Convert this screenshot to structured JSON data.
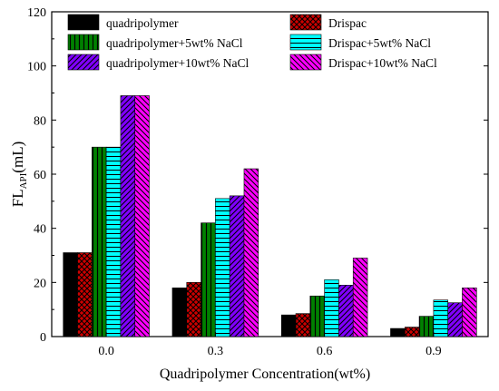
{
  "chart_data": {
    "type": "bar",
    "xlabel": "Quadripolymer Concentration(wt%)",
    "ylabel_main": "FL",
    "ylabel_sub": "API",
    "ylabel_unit": "(mL)",
    "categories": [
      "0.0",
      "0.3",
      "0.6",
      "0.9"
    ],
    "ylim": [
      0,
      120
    ],
    "yticks": [
      "0",
      "20",
      "40",
      "60",
      "80",
      "100",
      "120"
    ],
    "grid": false,
    "legend_position": "top",
    "series": [
      {
        "name": "quadripolymer",
        "values": [
          31,
          18,
          8,
          3
        ],
        "color": "#000000",
        "pattern": "solid"
      },
      {
        "name": "Drispac",
        "values": [
          31,
          20,
          8.5,
          3.5
        ],
        "color": "#cc0000",
        "pattern": "crosshatch"
      },
      {
        "name": "quadripolymer+5wt% NaCl",
        "values": [
          70,
          42,
          15,
          7.5
        ],
        "color": "#008000",
        "pattern": "vertical"
      },
      {
        "name": "Drispac+5wt% NaCl",
        "values": [
          70,
          51,
          21,
          13.5
        ],
        "color": "#00ffff",
        "pattern": "horizontal"
      },
      {
        "name": "quadripolymer+10wt% NaCl",
        "values": [
          89,
          52,
          19,
          12.5
        ],
        "color": "#8000ff",
        "pattern": "diag-left"
      },
      {
        "name": "Drispac+10wt% NaCl",
        "values": [
          89,
          62,
          29,
          18
        ],
        "color": "#ff00ff",
        "pattern": "diag-right"
      }
    ]
  }
}
